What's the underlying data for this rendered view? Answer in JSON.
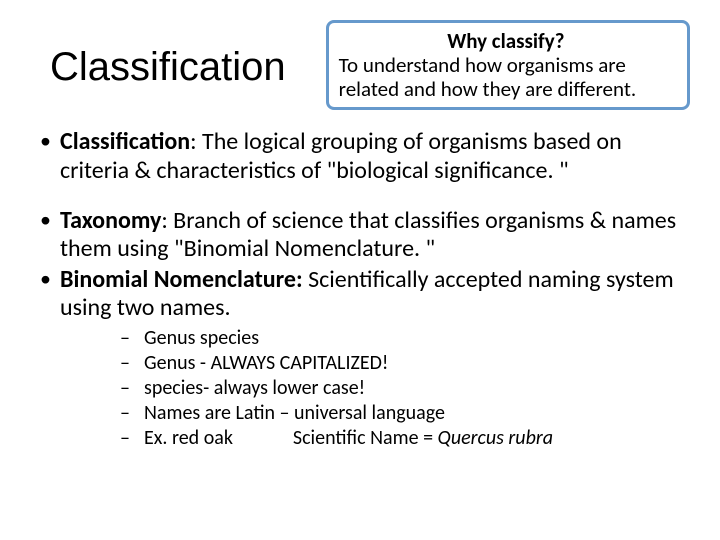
{
  "colors": {
    "callout_border": "#6699cc",
    "text": "#000000",
    "background": "#ffffff"
  },
  "title": "Classification",
  "callout": {
    "question": "Why classify?",
    "answer": "To understand how organisms are related and how they are different."
  },
  "bullets": {
    "b1_term": "Classification",
    "b1_text": ":  The logical grouping of organisms based on criteria & characteristics of \"biological significance. \"",
    "b2_term": "Taxonomy",
    "b2_text": ":  Branch of science that classifies organisms & names them using \"Binomial Nomenclature. \"",
    "b3_term": "Binomial Nomenclature:",
    "b3_text": "  Scientifically accepted naming system using two names."
  },
  "sub": {
    "s1": "  Genus   species",
    "s2": "Genus - ALWAYS CAPITALIZED!",
    "s3": "species- always lower case!",
    "s4": "Names are Latin – universal language",
    "s5a": "Ex.  red oak",
    "s5b": "Scientific Name = ",
    "s5c": "Quercus rubra"
  }
}
